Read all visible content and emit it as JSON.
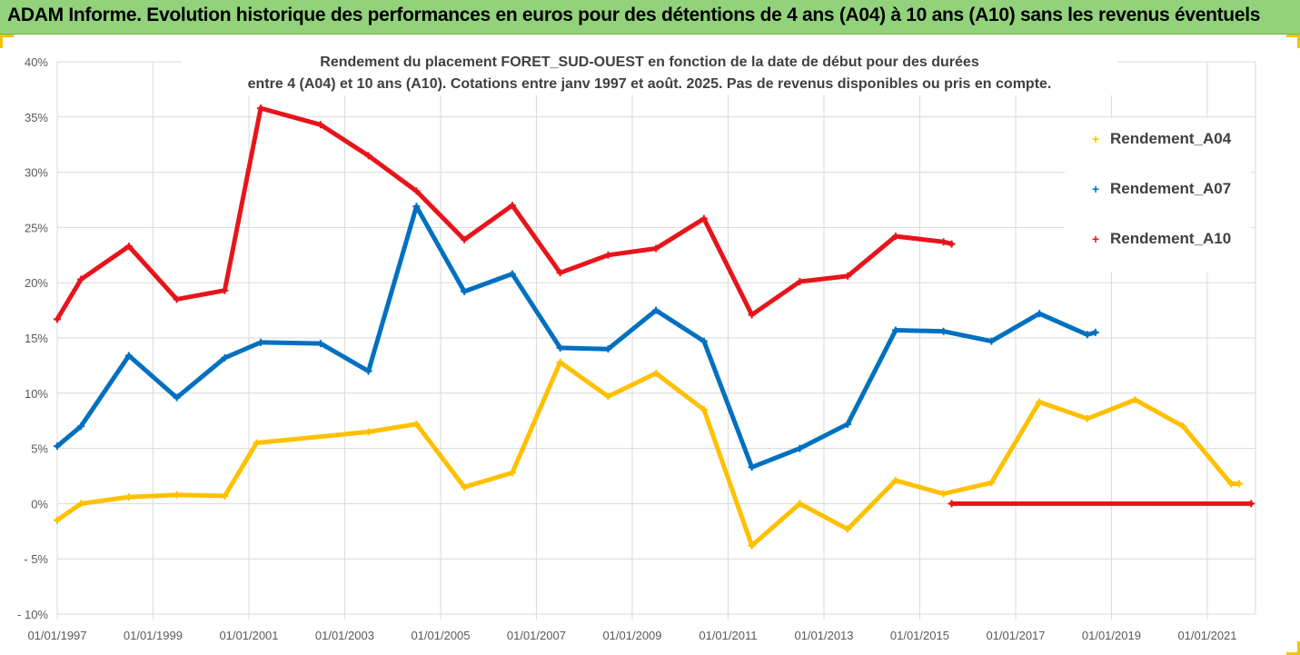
{
  "banner": {
    "title": "ADAM Informe. Evolution historique des performances en euros pour des détentions de 4 ans (A04) à 10 ans (A10) sans les revenus éventuels"
  },
  "chart_data": {
    "type": "line",
    "title_lines": [
      "Rendement du placement FORET_SUD-OUEST en fonction de la date de début pour des durées",
      "entre 4 (A04) et 10 ans (A10). Cotations entre janv 1997 et août. 2025. Pas de revenus disponibles ou pris en compte."
    ],
    "xlabel": "",
    "ylabel": "",
    "x_range": [
      "1997-01-01",
      "2022-01-01"
    ],
    "ylim": [
      -10,
      40
    ],
    "y_ticks": [
      -10,
      -5,
      0,
      5,
      10,
      15,
      20,
      25,
      30,
      35,
      40
    ],
    "y_tick_labels": [
      "- 10%",
      "- 5%",
      "0%",
      "5%",
      "10%",
      "15%",
      "20%",
      "25%",
      "30%",
      "35%",
      "40%"
    ],
    "x_ticks": [
      "1997-01-01",
      "1999-01-01",
      "2001-01-01",
      "2003-01-01",
      "2005-01-01",
      "2007-01-01",
      "2009-01-01",
      "2011-01-01",
      "2013-01-01",
      "2015-01-01",
      "2017-01-01",
      "2019-01-01",
      "2021-01-01"
    ],
    "x_tick_labels": [
      "01/01/1997",
      "01/01/1999",
      "01/01/2001",
      "01/01/2003",
      "01/01/2005",
      "01/01/2007",
      "01/01/2009",
      "01/01/2011",
      "01/01/2013",
      "01/01/2015",
      "01/01/2017",
      "01/01/2019",
      "01/01/2021"
    ],
    "grid": true,
    "legend_position": "right",
    "series": [
      {
        "name": "Rendement_A04",
        "color": "#ffc000",
        "points": [
          [
            "1997-01-01",
            -1.5
          ],
          [
            "1997-07-01",
            0
          ],
          [
            "1998-07-01",
            0.6
          ],
          [
            "1999-07-01",
            0.8
          ],
          [
            "2000-07-01",
            0.7
          ],
          [
            "2001-03-01",
            5.5
          ],
          [
            "2003-07-01",
            6.5
          ],
          [
            "2004-07-01",
            7.2
          ],
          [
            "2005-07-01",
            1.5
          ],
          [
            "2006-07-01",
            2.8
          ],
          [
            "2007-07-01",
            12.8
          ],
          [
            "2008-07-01",
            9.7
          ],
          [
            "2009-07-01",
            11.8
          ],
          [
            "2010-07-01",
            8.5
          ],
          [
            "2011-07-01",
            -3.8
          ],
          [
            "2012-07-01",
            0
          ],
          [
            "2013-07-01",
            -2.3
          ],
          [
            "2014-07-01",
            2.1
          ],
          [
            "2015-07-01",
            0.9
          ],
          [
            "2016-07-01",
            1.9
          ],
          [
            "2017-07-01",
            9.2
          ],
          [
            "2018-07-01",
            7.7
          ],
          [
            "2019-07-01",
            9.4
          ],
          [
            "2020-07-01",
            7.0
          ],
          [
            "2021-07-01",
            1.8
          ],
          [
            "2021-09-01",
            1.8
          ]
        ]
      },
      {
        "name": "Rendement_A07",
        "color": "#0070c0",
        "points": [
          [
            "1997-01-01",
            5.2
          ],
          [
            "1997-07-01",
            7.0
          ],
          [
            "1998-07-01",
            13.4
          ],
          [
            "1999-07-01",
            9.6
          ],
          [
            "2000-07-01",
            13.2
          ],
          [
            "2001-04-01",
            14.6
          ],
          [
            "2002-07-01",
            14.5
          ],
          [
            "2003-07-01",
            12.0
          ],
          [
            "2004-07-01",
            26.9
          ],
          [
            "2005-07-01",
            19.2
          ],
          [
            "2006-07-01",
            20.8
          ],
          [
            "2007-07-01",
            14.1
          ],
          [
            "2008-07-01",
            14.0
          ],
          [
            "2009-07-01",
            17.5
          ],
          [
            "2010-07-01",
            14.7
          ],
          [
            "2011-07-01",
            3.3
          ],
          [
            "2012-07-01",
            5.0
          ],
          [
            "2013-07-01",
            7.2
          ],
          [
            "2014-07-01",
            15.7
          ],
          [
            "2015-07-01",
            15.6
          ],
          [
            "2016-07-01",
            14.7
          ],
          [
            "2017-07-01",
            17.2
          ],
          [
            "2018-07-01",
            15.3
          ],
          [
            "2018-09-01",
            15.5
          ]
        ]
      },
      {
        "name": "Rendement_A10",
        "color": "#e8141b",
        "points": [
          [
            "1997-01-01",
            16.7
          ],
          [
            "1997-07-01",
            20.3
          ],
          [
            "1998-07-01",
            23.3
          ],
          [
            "1999-07-01",
            18.5
          ],
          [
            "2000-07-01",
            19.3
          ],
          [
            "2001-04-01",
            35.8
          ],
          [
            "2002-07-01",
            34.3
          ],
          [
            "2003-07-01",
            31.5
          ],
          [
            "2004-07-01",
            28.3
          ],
          [
            "2005-07-01",
            23.9
          ],
          [
            "2006-07-01",
            27.0
          ],
          [
            "2007-07-01",
            20.9
          ],
          [
            "2008-07-01",
            22.5
          ],
          [
            "2009-07-01",
            23.1
          ],
          [
            "2010-07-01",
            25.8
          ],
          [
            "2011-07-01",
            17.1
          ],
          [
            "2012-07-01",
            20.1
          ],
          [
            "2013-07-01",
            20.6
          ],
          [
            "2014-07-01",
            24.2
          ],
          [
            "2015-07-01",
            23.7
          ],
          [
            "2015-09-01",
            23.5
          ]
        ],
        "zero_segment": [
          [
            "2015-09-01",
            0
          ],
          [
            "2021-12-01",
            0
          ]
        ]
      }
    ]
  }
}
